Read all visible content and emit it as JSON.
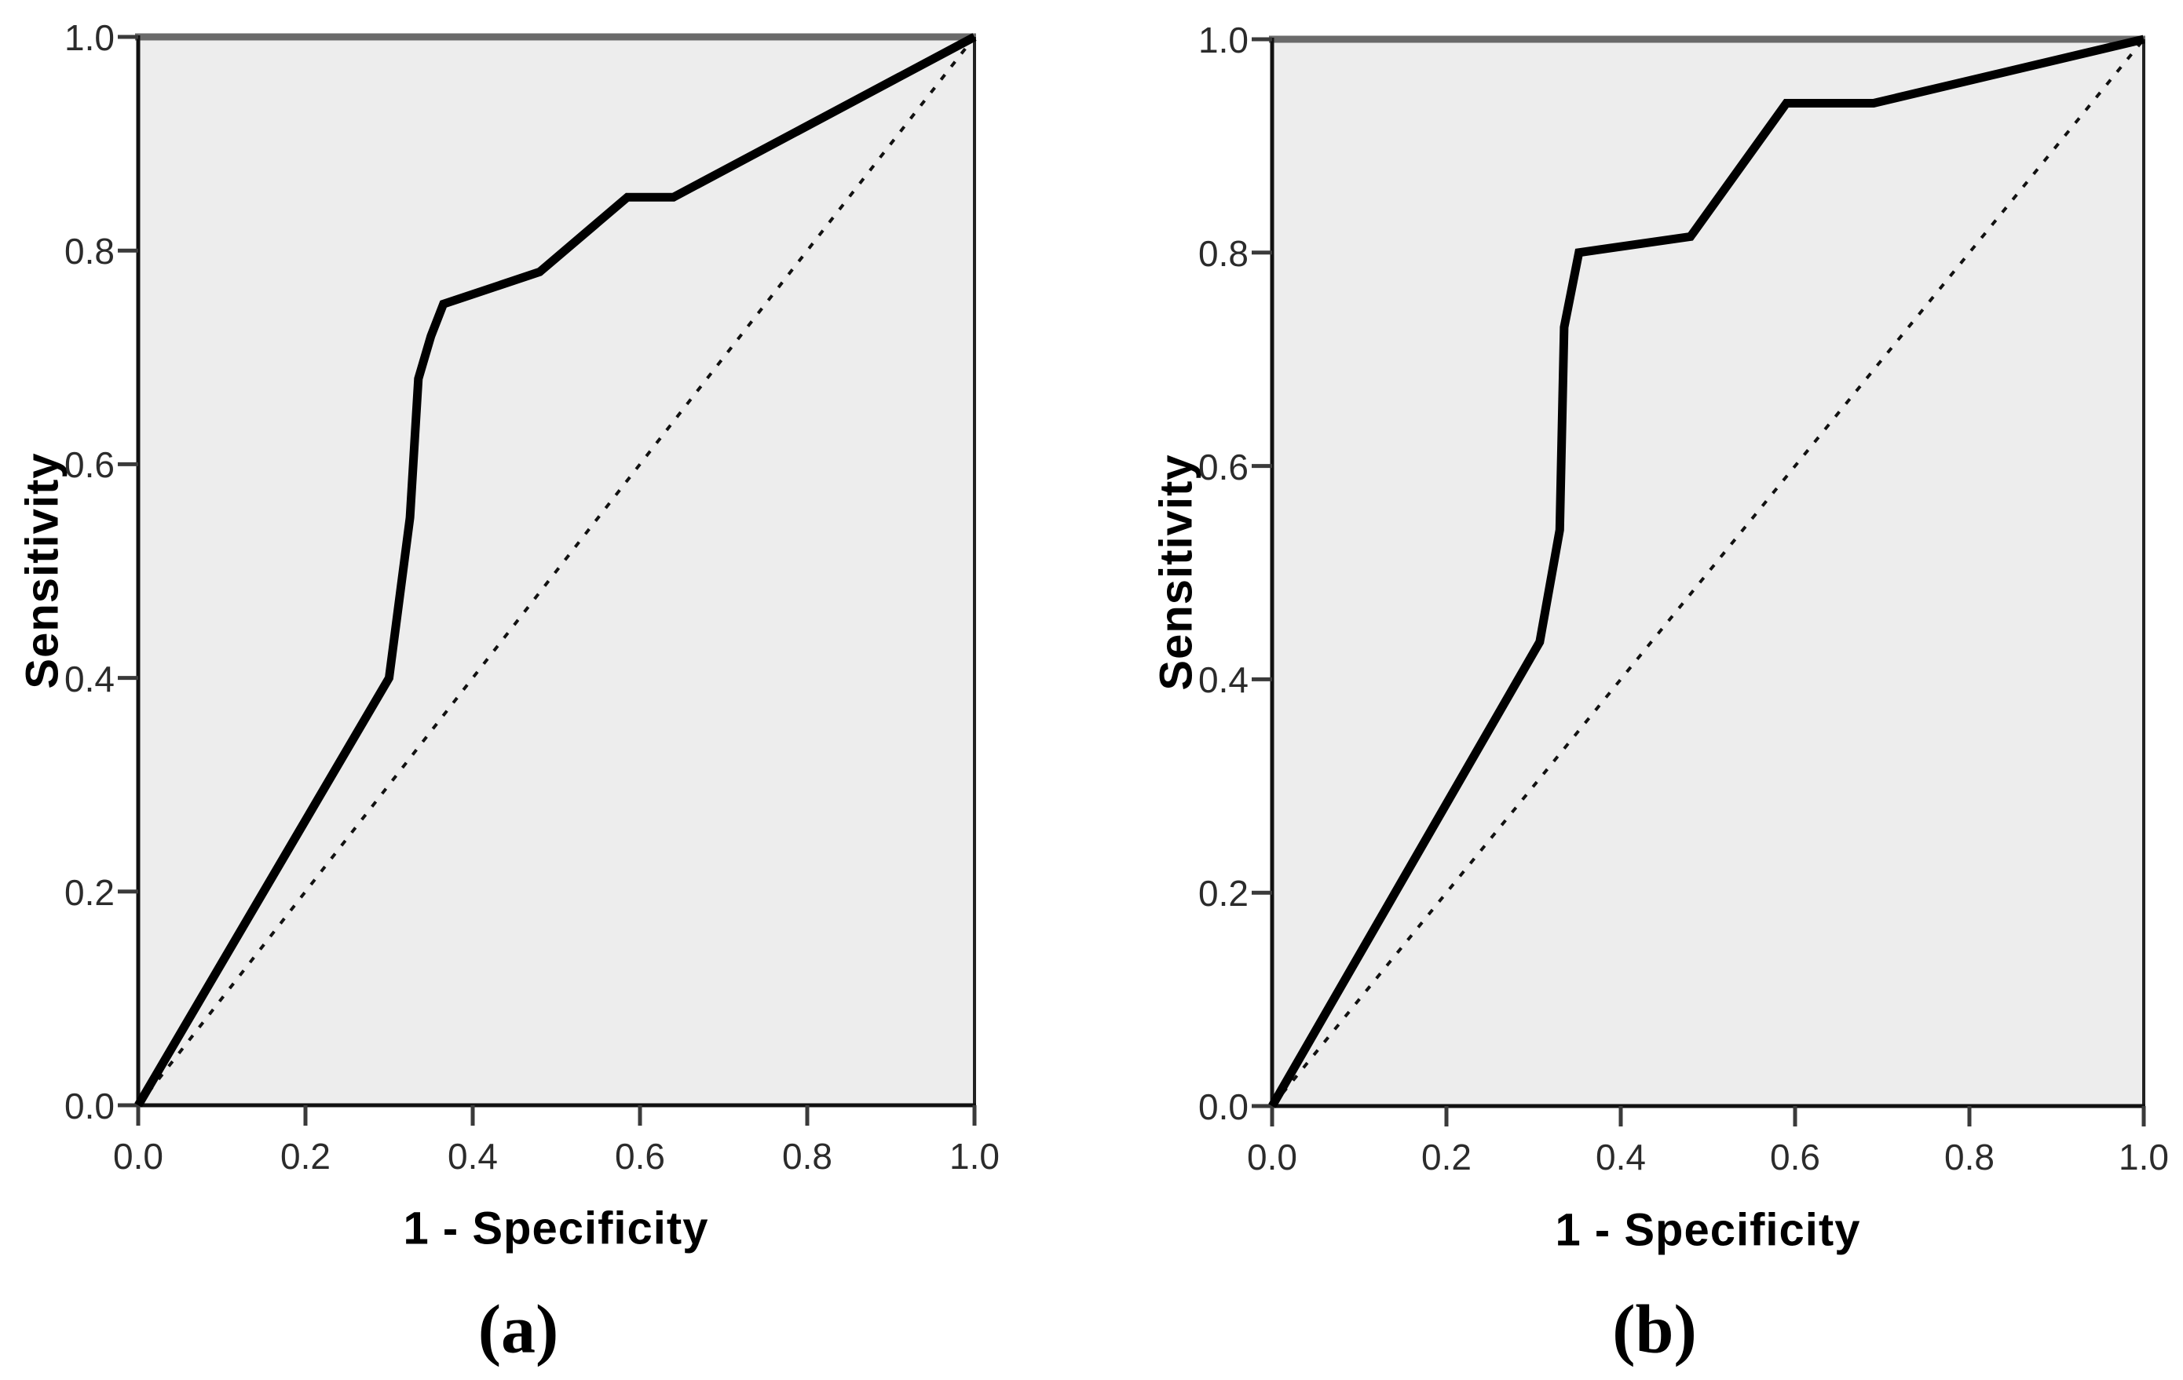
{
  "figure_description": "Two ROC curve panels from a statistics package, each plotting Sensitivity against 1 - Specificity with a dashed chance diagonal",
  "colors": {
    "page_background": "#ffffff",
    "plot_background": "#ededed",
    "frame_top": "#6a6a6a",
    "frame_side": "#222222",
    "axis_line": "#111111",
    "tick_mark": "#3a3a3a",
    "tick_text": "#2b2b2b",
    "curve": "#000000",
    "diagonal": "#111111"
  },
  "chart_data": [
    {
      "panel_label": "(a)",
      "type": "line",
      "title": "",
      "xlabel": "1 - Specificity",
      "ylabel": "Sensitivity",
      "xlim": [
        0,
        1
      ],
      "ylim": [
        0,
        1
      ],
      "grid": false,
      "legend": "none",
      "tick_values": [
        0,
        0.2,
        0.4,
        0.6,
        0.8,
        1.0
      ],
      "tick_labels": [
        "0.0",
        "0.2",
        "0.4",
        "0.6",
        "0.8",
        "1.0"
      ],
      "series": [
        {
          "name": "ROC curve",
          "style": "solid",
          "points": [
            [
              0.0,
              0.0
            ],
            [
              0.3,
              0.4
            ],
            [
              0.325,
              0.55
            ],
            [
              0.335,
              0.68
            ],
            [
              0.35,
              0.72
            ],
            [
              0.365,
              0.75
            ],
            [
              0.48,
              0.78
            ],
            [
              0.585,
              0.85
            ],
            [
              0.64,
              0.85
            ],
            [
              1.0,
              1.0
            ]
          ]
        },
        {
          "name": "Reference diagonal",
          "style": "dashed",
          "points": [
            [
              0.0,
              0.0
            ],
            [
              1.0,
              1.0
            ]
          ]
        }
      ]
    },
    {
      "panel_label": "(b)",
      "type": "line",
      "title": "",
      "xlabel": "1 - Specificity",
      "ylabel": "Sensitivity",
      "xlim": [
        0,
        1
      ],
      "ylim": [
        0,
        1
      ],
      "grid": false,
      "legend": "none",
      "tick_values": [
        0,
        0.2,
        0.4,
        0.6,
        0.8,
        1.0
      ],
      "tick_labels": [
        "0.0",
        "0.2",
        "0.4",
        "0.6",
        "0.8",
        "1.0"
      ],
      "series": [
        {
          "name": "ROC curve",
          "style": "solid",
          "points": [
            [
              0.0,
              0.0
            ],
            [
              0.307,
              0.435
            ],
            [
              0.33,
              0.54
            ],
            [
              0.335,
              0.73
            ],
            [
              0.352,
              0.8
            ],
            [
              0.48,
              0.815
            ],
            [
              0.59,
              0.94
            ],
            [
              0.69,
              0.94
            ],
            [
              1.0,
              1.0
            ]
          ]
        },
        {
          "name": "Reference diagonal",
          "style": "dashed",
          "points": [
            [
              0.0,
              0.0
            ],
            [
              1.0,
              1.0
            ]
          ]
        }
      ]
    }
  ]
}
